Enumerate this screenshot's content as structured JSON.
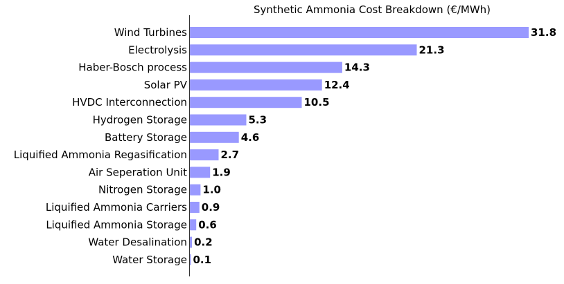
{
  "chart_data": {
    "type": "bar",
    "orientation": "horizontal",
    "title": "Synthetic Ammonia Cost Breakdown (€/MWh)",
    "xlabel": "",
    "ylabel": "",
    "xlim": [
      0,
      31.8
    ],
    "grid": false,
    "bar_color": "#9999ff",
    "categories": [
      "Wind Turbines",
      "Electrolysis",
      "Haber-Bosch process",
      "Solar PV",
      "HVDC Interconnection",
      "Hydrogen Storage",
      "Battery Storage",
      "Liquified Ammonia Regasification",
      "Air Seperation Unit",
      "Nitrogen Storage",
      "Liquified Ammonia Carriers",
      "Liquified Ammonia Storage",
      "Water Desalination",
      "Water Storage"
    ],
    "values": [
      31.8,
      21.3,
      14.3,
      12.4,
      10.5,
      5.3,
      4.6,
      2.7,
      1.9,
      1.0,
      0.9,
      0.6,
      0.2,
      0.1
    ],
    "value_labels": [
      "31.8",
      "21.3",
      "14.3",
      "12.4",
      "10.5",
      "5.3",
      "4.6",
      "2.7",
      "1.9",
      "1.0",
      "0.9",
      "0.6",
      "0.2",
      "0.1"
    ]
  }
}
